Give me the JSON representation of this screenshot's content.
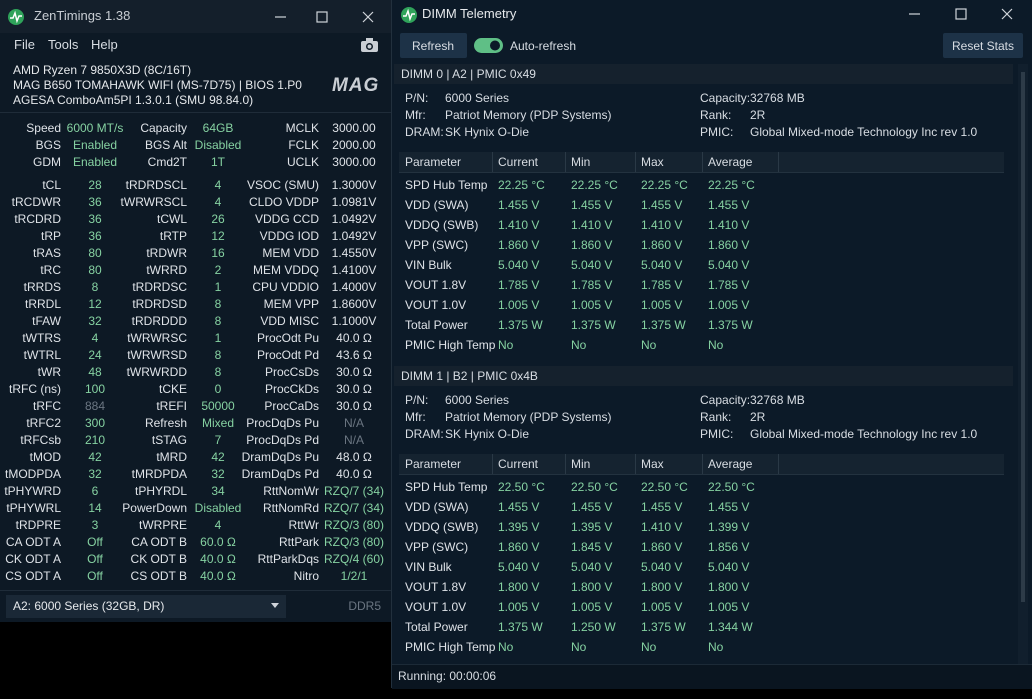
{
  "zentimings": {
    "title": "ZenTimings 1.38",
    "menu": [
      "File",
      "Tools",
      "Help"
    ],
    "system": [
      "AMD Ryzen 7 9850X3D (8C/16T)",
      "MAG B650 TOMAHAWK WIFI (MS-7D75) | BIOS 1.P0",
      "AGESA ComboAm5PI 1.3.0.1 (SMU 98.84.0)"
    ],
    "logo": "MAG",
    "summary": [
      [
        "Speed",
        "6000 MT/s",
        "Capacity",
        "64GB",
        "MCLK",
        "3000.00"
      ],
      [
        "BGS",
        "Enabled",
        "BGS Alt",
        "Disabled",
        "FCLK",
        "2000.00"
      ],
      [
        "GDM",
        "Enabled",
        "Cmd2T",
        "1T",
        "UCLK",
        "3000.00"
      ]
    ],
    "timings": [
      [
        "tCL",
        "28",
        "tRDRDSCL",
        "4",
        "VSOC (SMU)",
        "1.3000V"
      ],
      [
        "tRCDWR",
        "36",
        "tWRWRSCL",
        "4",
        "CLDO VDDP",
        "1.0981V"
      ],
      [
        "tRCDRD",
        "36",
        "tCWL",
        "26",
        "VDDG CCD",
        "1.0492V"
      ],
      [
        "tRP",
        "36",
        "tRTP",
        "12",
        "VDDG IOD",
        "1.0492V"
      ],
      [
        "tRAS",
        "80",
        "tRDWR",
        "16",
        "MEM VDD",
        "1.4550V"
      ],
      [
        "tRC",
        "80",
        "tWRRD",
        "2",
        "MEM VDDQ",
        "1.4100V"
      ],
      [
        "tRRDS",
        "8",
        "tRDRDSC",
        "1",
        "CPU VDDIO",
        "1.4000V"
      ],
      [
        "tRRDL",
        "12",
        "tRDRDSD",
        "8",
        "MEM VPP",
        "1.8600V"
      ],
      [
        "tFAW",
        "32",
        "tRDRDDD",
        "8",
        "VDD MISC",
        "1.1000V"
      ],
      [
        "tWTRS",
        "4",
        "tWRWRSC",
        "1",
        "ProcOdt Pu",
        "40.0 Ω"
      ],
      [
        "tWTRL",
        "24",
        "tWRWRSD",
        "8",
        "ProcOdt Pd",
        "43.6 Ω"
      ],
      [
        "tWR",
        "48",
        "tWRWRDD",
        "8",
        "ProcCsDs",
        "30.0 Ω"
      ],
      [
        "tRFC (ns)",
        "100",
        "tCKE",
        "0",
        "ProcCkDs",
        "30.0 Ω"
      ],
      [
        "tRFC",
        "884",
        "tREFI",
        "50000",
        "ProcCaDs",
        "30.0 Ω"
      ],
      [
        "tRFC2",
        "300",
        "Refresh",
        "Mixed",
        "ProcDqDs Pu",
        "N/A"
      ],
      [
        "tRFCsb",
        "210",
        "tSTAG",
        "7",
        "ProcDqDs Pd",
        "N/A"
      ],
      [
        "tMOD",
        "42",
        "tMRD",
        "42",
        "DramDqDs Pu",
        "48.0 Ω"
      ],
      [
        "tMODPDA",
        "32",
        "tMRDPDA",
        "32",
        "DramDqDs Pd",
        "40.0 Ω"
      ],
      [
        "tPHYWRD",
        "6",
        "tPHYRDL",
        "34",
        "RttNomWr",
        "RZQ/7 (34)"
      ],
      [
        "tPHYWRL",
        "14",
        "PowerDown",
        "Disabled",
        "RttNomRd",
        "RZQ/7 (34)"
      ],
      [
        "tRDPRE",
        "3",
        "tWRPRE",
        "4",
        "RttWr",
        "RZQ/3 (80)"
      ],
      [
        "CA ODT A",
        "Off",
        "CA ODT B",
        "60.0 Ω",
        "RttPark",
        "RZQ/3 (80)"
      ],
      [
        "CK ODT A",
        "Off",
        "CK ODT B",
        "40.0 Ω",
        "RttParkDqs",
        "RZQ/4 (60)"
      ],
      [
        "CS ODT A",
        "Off",
        "CS ODT B",
        "40.0 Ω",
        "Nitro",
        "1/2/1"
      ]
    ],
    "module": "A2: 6000 Series (32GB, DR)",
    "memory_type": "DDR5"
  },
  "telemetry": {
    "title": "DIMM Telemetry",
    "refresh": "Refresh",
    "auto_refresh": "Auto-refresh",
    "reset": "Reset Stats",
    "columns": [
      "Parameter",
      "Current",
      "Min",
      "Max",
      "Average"
    ],
    "dimms": [
      {
        "header": "DIMM 0 | A2 | PMIC 0x49",
        "left": [
          [
            "P/N:",
            "6000 Series"
          ],
          [
            "Mfr:",
            "Patriot Memory (PDP Systems)"
          ],
          [
            "DRAM:",
            "SK Hynix O-Die"
          ]
        ],
        "right": [
          [
            "Capacity:",
            "32768 MB"
          ],
          [
            "Rank:",
            "2R"
          ],
          [
            "PMIC:",
            "Global Mixed-mode Technology Inc rev 1.0"
          ]
        ],
        "rows": [
          [
            "SPD Hub Temp",
            "22.25 °C",
            "22.25 °C",
            "22.25 °C",
            "22.25 °C"
          ],
          [
            "VDD (SWA)",
            "1.455 V",
            "1.455 V",
            "1.455 V",
            "1.455 V"
          ],
          [
            "VDDQ (SWB)",
            "1.410 V",
            "1.410 V",
            "1.410 V",
            "1.410 V"
          ],
          [
            "VPP (SWC)",
            "1.860 V",
            "1.860 V",
            "1.860 V",
            "1.860 V"
          ],
          [
            "VIN Bulk",
            "5.040 V",
            "5.040 V",
            "5.040 V",
            "5.040 V"
          ],
          [
            "VOUT 1.8V",
            "1.785 V",
            "1.785 V",
            "1.785 V",
            "1.785 V"
          ],
          [
            "VOUT 1.0V",
            "1.005 V",
            "1.005 V",
            "1.005 V",
            "1.005 V"
          ],
          [
            "Total Power",
            "1.375 W",
            "1.375 W",
            "1.375 W",
            "1.375 W"
          ],
          [
            "PMIC High Temp",
            "No",
            "No",
            "No",
            "No"
          ]
        ]
      },
      {
        "header": "DIMM 1 | B2 | PMIC 0x4B",
        "left": [
          [
            "P/N:",
            "6000 Series"
          ],
          [
            "Mfr:",
            "Patriot Memory (PDP Systems)"
          ],
          [
            "DRAM:",
            "SK Hynix O-Die"
          ]
        ],
        "right": [
          [
            "Capacity:",
            "32768 MB"
          ],
          [
            "Rank:",
            "2R"
          ],
          [
            "PMIC:",
            "Global Mixed-mode Technology Inc rev 1.0"
          ]
        ],
        "rows": [
          [
            "SPD Hub Temp",
            "22.50 °C",
            "22.50 °C",
            "22.50 °C",
            "22.50 °C"
          ],
          [
            "VDD (SWA)",
            "1.455 V",
            "1.455 V",
            "1.455 V",
            "1.455 V"
          ],
          [
            "VDDQ (SWB)",
            "1.395 V",
            "1.395 V",
            "1.410 V",
            "1.399 V"
          ],
          [
            "VPP (SWC)",
            "1.860 V",
            "1.845 V",
            "1.860 V",
            "1.856 V"
          ],
          [
            "VIN Bulk",
            "5.040 V",
            "5.040 V",
            "5.040 V",
            "5.040 V"
          ],
          [
            "VOUT 1.8V",
            "1.800 V",
            "1.800 V",
            "1.800 V",
            "1.800 V"
          ],
          [
            "VOUT 1.0V",
            "1.005 V",
            "1.005 V",
            "1.005 V",
            "1.005 V"
          ],
          [
            "Total Power",
            "1.375 W",
            "1.250 W",
            "1.375 W",
            "1.344 W"
          ],
          [
            "PMIC High Temp",
            "No",
            "No",
            "No",
            "No"
          ]
        ]
      }
    ],
    "status": "Running: 00:00:06"
  }
}
